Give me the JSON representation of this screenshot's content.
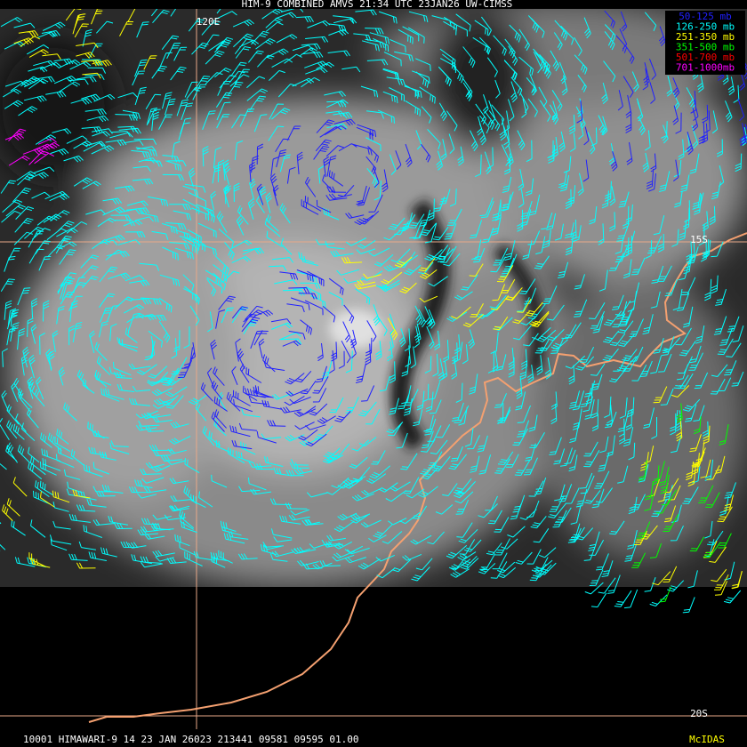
{
  "header": {
    "title": "HIM-9 COMBINED AMVS 21:34 UTC 23JAN26 UW-CIMSS"
  },
  "legend": [
    {
      "label": "50-125 mb",
      "color": "#2020ff"
    },
    {
      "label": "126-250 mb",
      "color": "#00ffff"
    },
    {
      "label": "251-350 mb",
      "color": "#ffff00"
    },
    {
      "label": "351-500 mb",
      "color": "#00ff00"
    },
    {
      "label": "501-700 mb",
      "color": "#ff0000"
    },
    {
      "label": "701-1000mb",
      "color": "#ff00ff"
    }
  ],
  "grid_labels": {
    "lon": "120E",
    "lat_north": "15S",
    "lat_south": "20S"
  },
  "footer": {
    "info": "10001 HIMAWARI-9 14 23 JAN 26023 213441 09581 09595 01.00",
    "brand": "McIDAS"
  }
}
